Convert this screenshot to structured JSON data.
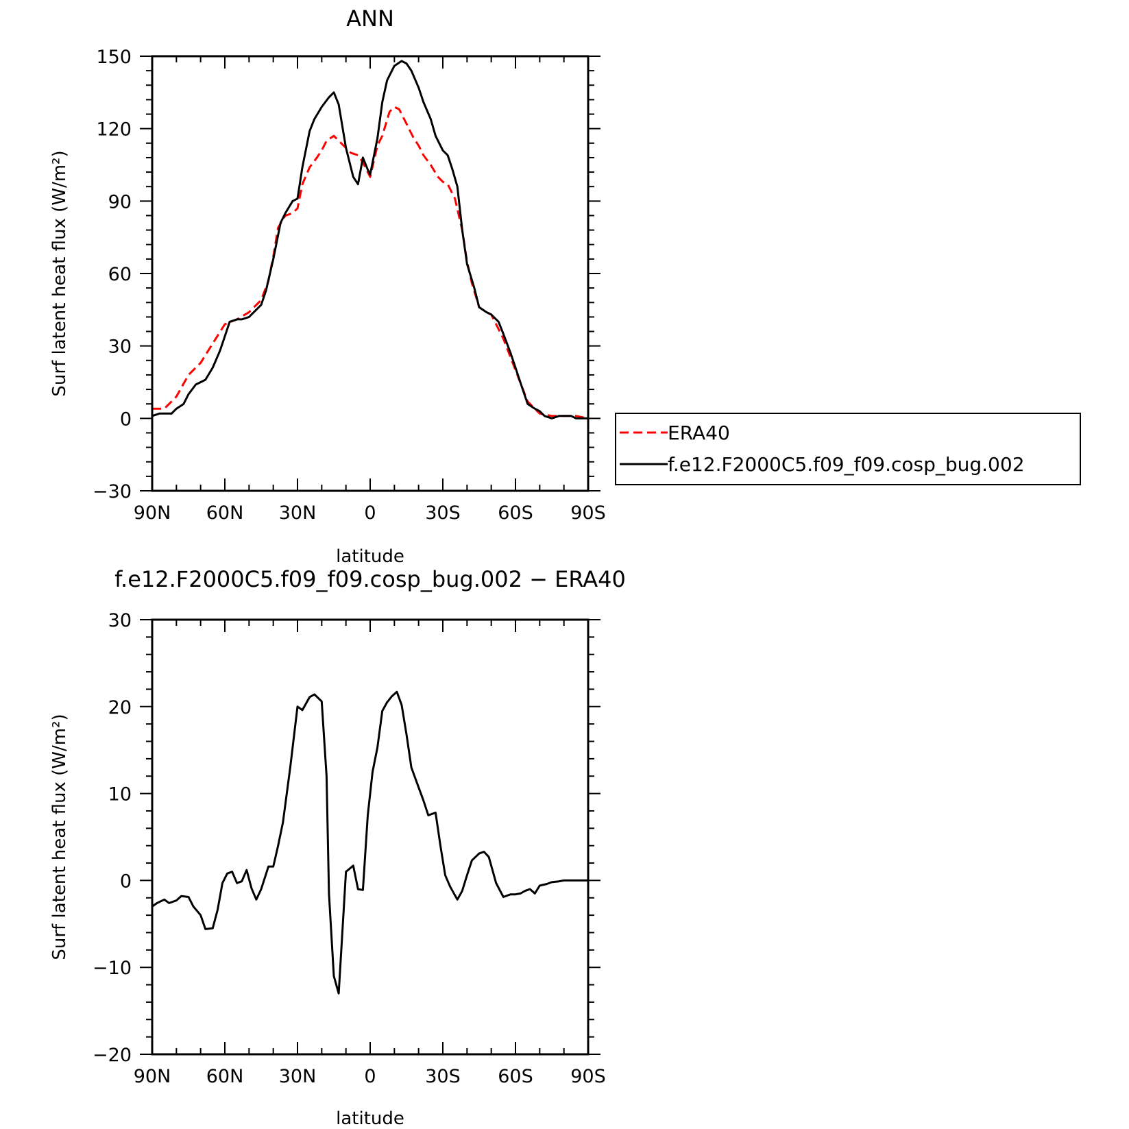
{
  "chart_data": [
    {
      "type": "line",
      "title": "ANN",
      "xlabel": "latitude",
      "ylabel": "Surf latent heat flux (W/m²)",
      "xlim": [
        90,
        -90
      ],
      "ylim": [
        -30,
        150
      ],
      "x_ticks": [
        90,
        60,
        30,
        0,
        -30,
        -60,
        -90
      ],
      "x_tick_labels": [
        "90N",
        "60N",
        "30N",
        "0",
        "30S",
        "60S",
        "90S"
      ],
      "y_ticks": [
        -30,
        0,
        30,
        60,
        90,
        120,
        150
      ],
      "y_tick_labels": [
        "−30",
        "0",
        "30",
        "60",
        "90",
        "120",
        "150"
      ],
      "grid": false,
      "legend_position": "right, outside plot",
      "series": [
        {
          "name": "ERA40",
          "color": "#ff0000",
          "dash": "dashed",
          "x": [
            90,
            85,
            80,
            75,
            70,
            65,
            60,
            55,
            50,
            45,
            42,
            40,
            38,
            35,
            32,
            30,
            28,
            25,
            22,
            20,
            18,
            15,
            12,
            10,
            8,
            5,
            3,
            0,
            -3,
            -5,
            -8,
            -10,
            -12,
            -15,
            -18,
            -20,
            -22,
            -25,
            -28,
            -30,
            -32,
            -35,
            -38,
            -40,
            -42,
            -45,
            -48,
            -50,
            -55,
            -60,
            -65,
            -70,
            -75,
            -80,
            -85,
            -90
          ],
          "y": [
            4,
            4,
            9,
            18,
            23,
            31,
            39,
            41,
            44,
            49,
            57,
            67,
            79,
            84,
            85,
            87,
            97,
            104,
            108,
            111,
            115,
            117,
            114,
            112,
            110,
            109,
            106,
            100,
            113,
            117,
            127,
            129,
            128,
            122,
            116,
            113,
            109,
            105,
            100,
            98,
            97,
            91,
            78,
            65,
            56,
            46,
            44,
            43,
            33,
            20,
            7,
            2,
            1,
            1,
            1,
            0
          ]
        },
        {
          "name": "f.e12.F2000C5.f09_f09.cosp_bug.002",
          "color": "#000000",
          "dash": "solid",
          "x": [
            90,
            87,
            82,
            80,
            77,
            75,
            72,
            70,
            68,
            65,
            62,
            60,
            58,
            55,
            53,
            50,
            47,
            45,
            43,
            40,
            37,
            35,
            32,
            30,
            28,
            25,
            23,
            20,
            17,
            15,
            13,
            10,
            7,
            5,
            3,
            1,
            0,
            -3,
            -5,
            -7,
            -10,
            -13,
            -15,
            -17,
            -20,
            -22,
            -25,
            -27,
            -30,
            -32,
            -34,
            -36,
            -38,
            -40,
            -43,
            -45,
            -48,
            -50,
            -53,
            -55,
            -58,
            -60,
            -63,
            -65,
            -68,
            -70,
            -72,
            -75,
            -78,
            -80,
            -83,
            -85,
            -88,
            -90
          ],
          "y": [
            1,
            2,
            2,
            4,
            6,
            10,
            14,
            15,
            16,
            21,
            28,
            34,
            40,
            41,
            41,
            42,
            45,
            47,
            53,
            66,
            81,
            85,
            90,
            91,
            104,
            119,
            124,
            129,
            133,
            135,
            130,
            112,
            100,
            97,
            108,
            103,
            101,
            116,
            131,
            140,
            146,
            148,
            147,
            144,
            137,
            131,
            124,
            117,
            111,
            109,
            103,
            96,
            78,
            64,
            54,
            46,
            44,
            43,
            40,
            35,
            27,
            21,
            12,
            6,
            4,
            3,
            1,
            0,
            1,
            1,
            1,
            0,
            0,
            0
          ]
        }
      ]
    },
    {
      "type": "line",
      "title": "f.e12.F2000C5.f09_f09.cosp_bug.002 − ERA40",
      "xlabel": "latitude",
      "ylabel": "Surf latent heat flux (W/m²)",
      "xlim": [
        90,
        -90
      ],
      "ylim": [
        -20,
        30
      ],
      "x_ticks": [
        90,
        60,
        30,
        0,
        -30,
        -60,
        -90
      ],
      "x_tick_labels": [
        "90N",
        "60N",
        "30N",
        "0",
        "30S",
        "60S",
        "90S"
      ],
      "y_ticks": [
        -20,
        -10,
        0,
        10,
        20,
        30
      ],
      "y_tick_labels": [
        "−20",
        "−10",
        "0",
        "10",
        "20",
        "30"
      ],
      "grid": false,
      "series": [
        {
          "color": "#000000",
          "dash": "solid",
          "x": [
            90,
            88,
            85,
            83,
            80,
            78,
            75,
            73,
            70,
            68,
            65,
            63,
            61,
            59,
            57,
            55,
            53,
            51,
            49,
            47,
            45,
            42,
            40,
            38,
            36,
            33,
            30,
            28,
            25,
            23,
            20,
            18,
            17,
            15,
            13,
            10,
            7,
            5,
            3,
            1,
            -1,
            -3,
            -5,
            -7,
            -9,
            -11,
            -13,
            -15,
            -17,
            -20,
            -22,
            -24,
            -27,
            -29,
            -31,
            -33,
            -36,
            -38,
            -40,
            -42,
            -45,
            -47,
            -49,
            -52,
            -55,
            -58,
            -60,
            -62,
            -64,
            -66,
            -68,
            -70,
            -73,
            -75,
            -78,
            -80,
            -83,
            -85,
            -87,
            -89,
            -90
          ],
          "y": [
            -3,
            -2.6,
            -2.2,
            -2.6,
            -2.3,
            -1.8,
            -1.9,
            -3,
            -4,
            -5.6,
            -5.5,
            -3.4,
            -0.3,
            0.8,
            1,
            -0.3,
            -0.1,
            1.2,
            -0.9,
            -2.2,
            -1,
            1.6,
            1.6,
            4,
            6.7,
            13,
            20,
            19.6,
            21.1,
            21.4,
            20.6,
            12,
            -1.5,
            -11,
            -13,
            1,
            1.7,
            -1,
            -1.1,
            7.5,
            12.5,
            15.3,
            19.5,
            20.5,
            21.2,
            21.7,
            20.2,
            16.8,
            13,
            10.7,
            9.2,
            7.5,
            7.8,
            4,
            0.6,
            -0.7,
            -2.2,
            -1.2,
            0.6,
            2.3,
            3.1,
            3.3,
            2.7,
            -0.3,
            -1.9,
            -1.6,
            -1.6,
            -1.5,
            -1.2,
            -1,
            -1.5,
            -0.6,
            -0.4,
            -0.2,
            -0.1,
            0,
            0,
            0,
            0,
            0,
            0
          ]
        }
      ]
    }
  ]
}
